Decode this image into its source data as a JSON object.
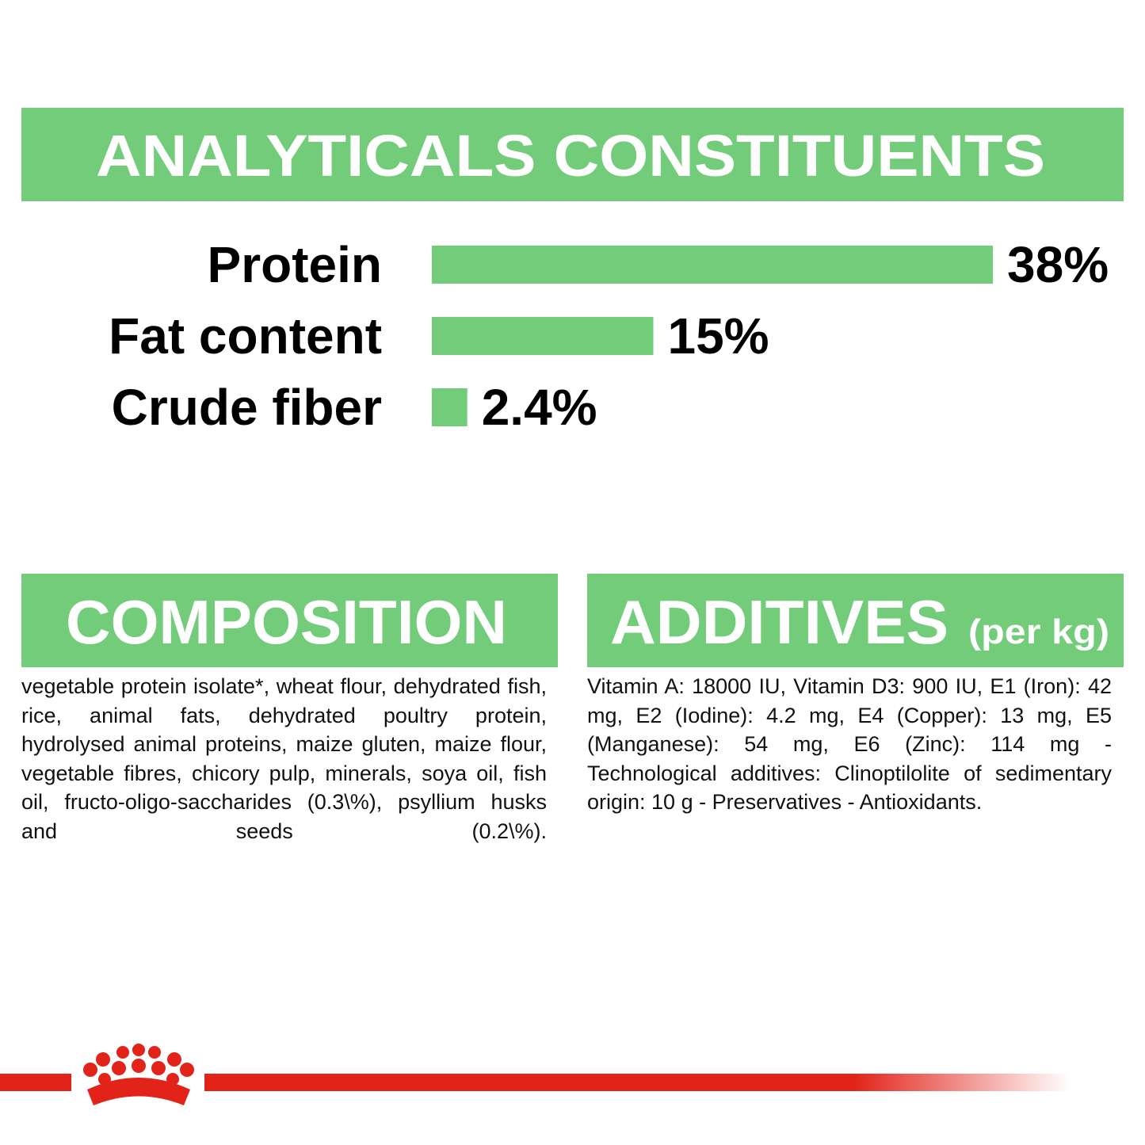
{
  "chart_data": {
    "type": "bar",
    "title": "ANALYTICALS CONSTITUENTS",
    "categories": [
      "Protein",
      "Fat content",
      "Crude fiber"
    ],
    "values": [
      38,
      15,
      2.4
    ],
    "value_labels": [
      "38%",
      "15%",
      "2.4%"
    ],
    "color": "#73cc7a"
  },
  "composition": {
    "title": "COMPOSITION",
    "text": "vegetable protein isolate*, wheat flour, dehydrated fish, rice, animal fats, dehydrated poultry protein, hydrolysed animal proteins, maize gluten, maize flour, vegetable fibres, chicory pulp, minerals, soya oil, fish oil, fructo-oligo-saccharides (0.3\\%), psyllium husks and seeds (0.2\\%)."
  },
  "additives": {
    "title": "ADDITIVES",
    "unit": "(per kg)",
    "text": "Vitamin A: 18000 IU, Vitamin D3: 900 IU, E1 (Iron): 42 mg, E2 (Iodine): 4.2 mg, E4 (Copper): 13 mg, E5 (Manganese): 54 mg, E6 (Zinc): 114 mg - Technological additives: Clinoptilolite of sedimentary origin: 10 g - Preservatives - Antioxidants."
  }
}
